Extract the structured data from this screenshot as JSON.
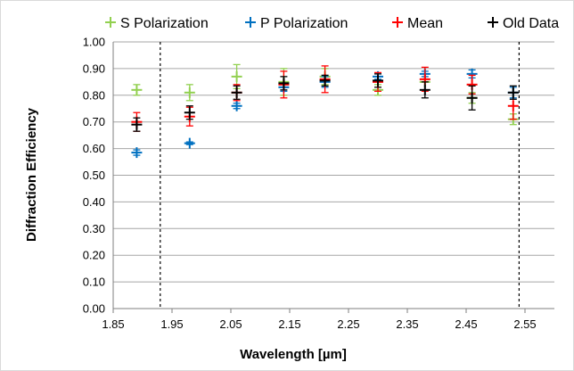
{
  "chart_data": {
    "type": "scatter",
    "title": "",
    "xlabel": "Wavelength [µm]",
    "ylabel": "Diffraction Efficiency",
    "xlim": [
      1.85,
      2.6
    ],
    "ylim": [
      0.0,
      1.0
    ],
    "xticks": [
      "1.85",
      "1.95",
      "2.05",
      "2.15",
      "2.25",
      "2.35",
      "2.45",
      "2.55"
    ],
    "yticks": [
      "0.00",
      "0.10",
      "0.20",
      "0.30",
      "0.40",
      "0.50",
      "0.60",
      "0.70",
      "0.80",
      "0.90",
      "1.00"
    ],
    "grid": "horizontal",
    "legend_position": "top",
    "marker": "plus with error bars",
    "reference_lines_x": [
      1.93,
      2.54
    ],
    "series": [
      {
        "name": "S Polarization",
        "color": "#92d050",
        "points": [
          {
            "x": 1.89,
            "y": 0.82,
            "err": 0.02
          },
          {
            "x": 1.98,
            "y": 0.81,
            "err": 0.03
          },
          {
            "x": 2.06,
            "y": 0.87,
            "err": 0.045
          },
          {
            "x": 2.14,
            "y": 0.85,
            "err": 0.05
          },
          {
            "x": 2.21,
            "y": 0.87,
            "err": 0.03
          },
          {
            "x": 2.3,
            "y": 0.82,
            "err": 0.02
          },
          {
            "x": 2.38,
            "y": 0.85,
            "err": 0.03
          },
          {
            "x": 2.46,
            "y": 0.79,
            "err": 0.02
          },
          {
            "x": 2.53,
            "y": 0.71,
            "err": 0.02
          }
        ]
      },
      {
        "name": "P Polarization",
        "color": "#0070c0",
        "points": [
          {
            "x": 1.89,
            "y": 0.585,
            "err": 0.01
          },
          {
            "x": 1.98,
            "y": 0.62,
            "err": 0.005
          },
          {
            "x": 2.06,
            "y": 0.76,
            "err": 0.01
          },
          {
            "x": 2.14,
            "y": 0.83,
            "err": 0.015
          },
          {
            "x": 2.21,
            "y": 0.85,
            "err": 0.02
          },
          {
            "x": 2.3,
            "y": 0.87,
            "err": 0.01
          },
          {
            "x": 2.38,
            "y": 0.88,
            "err": 0.01
          },
          {
            "x": 2.46,
            "y": 0.88,
            "err": 0.015
          },
          {
            "x": 2.53,
            "y": 0.81,
            "err": 0.02
          }
        ]
      },
      {
        "name": "Mean",
        "color": "#ff0000",
        "points": [
          {
            "x": 1.89,
            "y": 0.7,
            "err": 0.035
          },
          {
            "x": 1.98,
            "y": 0.72,
            "err": 0.035
          },
          {
            "x": 2.06,
            "y": 0.81,
            "err": 0.03
          },
          {
            "x": 2.14,
            "y": 0.84,
            "err": 0.05
          },
          {
            "x": 2.21,
            "y": 0.86,
            "err": 0.05
          },
          {
            "x": 2.3,
            "y": 0.85,
            "err": 0.035
          },
          {
            "x": 2.38,
            "y": 0.86,
            "err": 0.045
          },
          {
            "x": 2.46,
            "y": 0.84,
            "err": 0.035
          },
          {
            "x": 2.53,
            "y": 0.76,
            "err": 0.05
          }
        ]
      },
      {
        "name": "Old Data",
        "color": "#000000",
        "points": [
          {
            "x": 1.89,
            "y": 0.69,
            "err": 0.025
          },
          {
            "x": 1.98,
            "y": 0.735,
            "err": 0.025
          },
          {
            "x": 2.06,
            "y": 0.81,
            "err": 0.025
          },
          {
            "x": 2.14,
            "y": 0.845,
            "err": 0.025
          },
          {
            "x": 2.21,
            "y": 0.855,
            "err": 0.02
          },
          {
            "x": 2.3,
            "y": 0.855,
            "err": 0.025
          },
          {
            "x": 2.38,
            "y": 0.82,
            "err": 0.03
          },
          {
            "x": 2.46,
            "y": 0.79,
            "err": 0.045
          },
          {
            "x": 2.53,
            "y": 0.81,
            "err": 0.025
          }
        ]
      }
    ]
  }
}
